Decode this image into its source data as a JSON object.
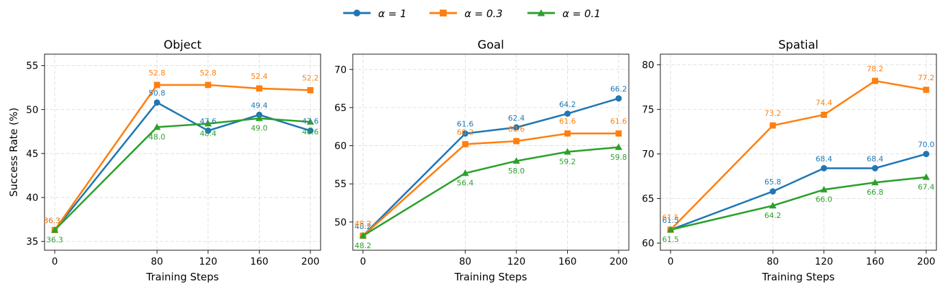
{
  "legend": [
    {
      "label": "α = 1",
      "color": "#1f77b4",
      "marker": "circle"
    },
    {
      "label": "α = 0.3",
      "color": "#ff7f0e",
      "marker": "square"
    },
    {
      "label": "α = 0.1",
      "color": "#2ca02c",
      "marker": "triangle"
    }
  ],
  "chart_data": [
    {
      "type": "line",
      "title": "Object",
      "xlabel": "Training Steps",
      "ylabel": "Success Rate (%)",
      "x": [
        0,
        80,
        120,
        160,
        200
      ],
      "xlim": [
        -8,
        208
      ],
      "ylim": [
        34,
        56.3
      ],
      "yticks": [
        35,
        40,
        45,
        50,
        55
      ],
      "grid": true,
      "series": [
        {
          "name": "α = 1",
          "color": "#1f77b4",
          "marker": "circle",
          "values": [
            36.3,
            50.8,
            47.6,
            49.4,
            47.6
          ]
        },
        {
          "name": "α = 0.3",
          "color": "#ff7f0e",
          "marker": "square",
          "values": [
            36.3,
            52.8,
            52.8,
            52.4,
            52.2
          ]
        },
        {
          "name": "α = 0.1",
          "color": "#2ca02c",
          "marker": "triangle",
          "values": [
            36.3,
            48.0,
            48.4,
            49.0,
            48.6
          ]
        }
      ],
      "data_labels": [
        [
          "36.3",
          "50.8",
          "47.6",
          "49.4",
          "47.6"
        ],
        [
          "36.3",
          "52.8",
          "52.8",
          "52.4",
          "52.2"
        ],
        [
          "36.3",
          "48.0",
          "48.4",
          "49.0",
          "48.6"
        ]
      ]
    },
    {
      "type": "line",
      "title": "Goal",
      "xlabel": "Training Steps",
      "ylabel": "",
      "x": [
        0,
        80,
        120,
        160,
        200
      ],
      "xlim": [
        -8,
        208
      ],
      "ylim": [
        46.3,
        72
      ],
      "yticks": [
        50,
        55,
        60,
        65,
        70
      ],
      "grid": true,
      "series": [
        {
          "name": "α = 1",
          "color": "#1f77b4",
          "marker": "circle",
          "values": [
            48.2,
            61.6,
            62.4,
            64.2,
            66.2
          ]
        },
        {
          "name": "α = 0.3",
          "color": "#ff7f0e",
          "marker": "square",
          "values": [
            48.2,
            60.2,
            60.6,
            61.6,
            61.6
          ]
        },
        {
          "name": "α = 0.1",
          "color": "#2ca02c",
          "marker": "triangle",
          "values": [
            48.2,
            56.4,
            58.0,
            59.2,
            59.8
          ]
        }
      ],
      "data_labels": [
        [
          "48.2",
          "61.6",
          "62.4",
          "64.2",
          "66.2"
        ],
        [
          "48.2",
          "60.2",
          "60.6",
          "61.6",
          "61.6"
        ],
        [
          "48.2",
          "56.4",
          "58.0",
          "59.2",
          "59.8"
        ]
      ]
    },
    {
      "type": "line",
      "title": "Spatial",
      "xlabel": "Training Steps",
      "ylabel": "",
      "x": [
        0,
        80,
        120,
        160,
        200
      ],
      "xlim": [
        -8,
        208
      ],
      "ylim": [
        59.2,
        81.2
      ],
      "yticks": [
        60,
        65,
        70,
        75,
        80
      ],
      "grid": true,
      "series": [
        {
          "name": "α = 1",
          "color": "#1f77b4",
          "marker": "circle",
          "values": [
            61.5,
            65.8,
            68.4,
            68.4,
            70.0
          ]
        },
        {
          "name": "α = 0.3",
          "color": "#ff7f0e",
          "marker": "square",
          "values": [
            61.5,
            73.2,
            74.4,
            78.2,
            77.2
          ]
        },
        {
          "name": "α = 0.1",
          "color": "#2ca02c",
          "marker": "triangle",
          "values": [
            61.5,
            64.2,
            66.0,
            66.8,
            67.4
          ]
        }
      ],
      "data_labels": [
        [
          "61.5",
          "65.8",
          "68.4",
          "68.4",
          "70.0"
        ],
        [
          "61.5",
          "73.2",
          "74.4",
          "78.2",
          "77.2"
        ],
        [
          "61.5",
          "64.2",
          "66.0",
          "66.8",
          "67.4"
        ]
      ]
    }
  ]
}
